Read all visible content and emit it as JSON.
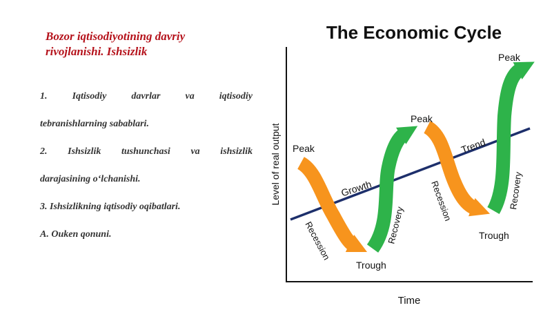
{
  "slide": {
    "title_line1": "Bozor iqtisodiyotining davriy",
    "title_line2": "rivojlanishi. Ishsizlik",
    "items": [
      {
        "lines": [
          "1.      Iqtisodiy      davrlar      va      iqtisodiy",
          "tebranishlarning sabablari."
        ]
      },
      {
        "lines": [
          "2.      Ishsizlik      tushunchasi      va      ishsizlik",
          "darajasining o‘lchanishi."
        ]
      },
      {
        "lines": [
          "3. Ishsizlikning iqtisodiy oqibatlari."
        ]
      },
      {
        "lines": [
          "A. Ouken qonuni."
        ]
      }
    ]
  },
  "diagram": {
    "title": "The Economic Cycle",
    "xlabel": "Time",
    "ylabel": "Level of real output",
    "labels": {
      "peak1": "Peak",
      "recession1": "Recession",
      "trough1": "Trough",
      "recovery1": "Recovery",
      "peak2": "Peak",
      "recession2": "Recession",
      "trough2": "Trough",
      "recovery2": "Recovery",
      "peak3": "Peak",
      "growth": "Growth",
      "trend": "Trend"
    },
    "colors": {
      "recession": "#f7941d",
      "recovery": "#2eb34a",
      "trend": "#1d2f6b",
      "axis": "#111111",
      "title_color": "#111111"
    }
  }
}
